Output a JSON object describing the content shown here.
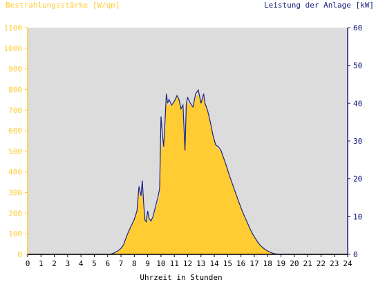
{
  "chart_data": {
    "type": "area",
    "left_axis_title": "Bestrahlungsstärke [W/qm]",
    "right_axis_title": "Leistung der Anlage [kW]",
    "xlabel": "Uhrzeit in Stunden",
    "xlim": [
      0,
      24
    ],
    "x_ticks": [
      "0",
      "1",
      "2",
      "3",
      "4",
      "5",
      "6",
      "7",
      "8",
      "9",
      "10",
      "11",
      "12",
      "13",
      "14",
      "15",
      "16",
      "17",
      "18",
      "19",
      "20",
      "21",
      "22",
      "23",
      "24"
    ],
    "y_left_lim": [
      0,
      1100
    ],
    "y_left_ticks": [
      "0",
      "100",
      "200",
      "300",
      "400",
      "500",
      "600",
      "700",
      "800",
      "900",
      "1000",
      "1100"
    ],
    "y_right_lim": [
      0,
      60
    ],
    "y_right_ticks": [
      "0",
      "10",
      "20",
      "30",
      "40",
      "50",
      "60"
    ],
    "grid": false,
    "colors": {
      "irradiance_fill": "#ffcc33",
      "power_line": "#1a237e",
      "plot_bg": "#dcdcdc",
      "left_axis_text": "#ffcc33",
      "right_axis_text": "#1a237e"
    },
    "series": [
      {
        "axis": "left",
        "style": "area",
        "x": [
          0,
          6.2,
          6.5,
          6.8,
          7.0,
          7.2,
          7.4,
          7.6,
          7.8,
          8.0,
          8.2,
          8.35,
          8.5,
          8.6,
          8.7,
          8.8,
          8.9,
          9.0,
          9.1,
          9.25,
          9.4,
          9.6,
          9.8,
          9.9,
          10.0,
          10.1,
          10.2,
          10.3,
          10.4,
          10.5,
          10.6,
          10.8,
          11.0,
          11.2,
          11.35,
          11.5,
          11.65,
          11.8,
          11.9,
          12.0,
          12.2,
          12.4,
          12.6,
          12.8,
          13.0,
          13.2,
          13.3,
          13.5,
          13.7,
          13.9,
          14.1,
          14.3,
          14.5,
          14.7,
          14.9,
          15.1,
          15.3,
          15.5,
          15.7,
          15.9,
          16.1,
          16.3,
          16.5,
          16.7,
          16.9,
          17.1,
          17.3,
          17.5,
          17.7,
          17.9,
          18.1,
          18.3,
          18.5,
          18.7,
          18.9,
          19.1,
          24
        ],
        "values": [
          0,
          0,
          5,
          15,
          25,
          45,
          80,
          110,
          140,
          170,
          220,
          305,
          275,
          300,
          240,
          160,
          150,
          200,
          170,
          155,
          175,
          220,
          260,
          290,
          520,
          560,
          500,
          590,
          750,
          720,
          730,
          720,
          740,
          780,
          750,
          710,
          720,
          500,
          720,
          740,
          725,
          715,
          760,
          780,
          730,
          760,
          740,
          700,
          650,
          580,
          530,
          510,
          500,
          470,
          430,
          390,
          350,
          315,
          280,
          245,
          210,
          180,
          150,
          120,
          95,
          75,
          55,
          40,
          30,
          20,
          12,
          7,
          3,
          1,
          0,
          0,
          0
        ]
      },
      {
        "axis": "right",
        "style": "line",
        "x": [
          0,
          6.2,
          6.5,
          6.8,
          7.0,
          7.2,
          7.4,
          7.6,
          7.8,
          8.0,
          8.2,
          8.35,
          8.5,
          8.6,
          8.7,
          8.8,
          8.9,
          9.0,
          9.1,
          9.25,
          9.4,
          9.6,
          9.8,
          9.9,
          10.0,
          10.1,
          10.2,
          10.3,
          10.4,
          10.5,
          10.6,
          10.8,
          11.0,
          11.2,
          11.35,
          11.5,
          11.65,
          11.8,
          11.9,
          12.0,
          12.2,
          12.4,
          12.6,
          12.8,
          13.0,
          13.2,
          13.3,
          13.5,
          13.7,
          13.9,
          14.1,
          14.3,
          14.5,
          14.7,
          14.9,
          15.1,
          15.3,
          15.5,
          15.7,
          15.9,
          16.1,
          16.3,
          16.5,
          16.7,
          16.9,
          17.1,
          17.3,
          17.5,
          17.7,
          17.9,
          18.1,
          18.3,
          18.5,
          18.7,
          18.9,
          19.1,
          24
        ],
        "values": [
          0,
          0,
          0.4,
          1.0,
          1.6,
          2.6,
          4.6,
          6.3,
          7.8,
          9.3,
          11.5,
          18.0,
          15.5,
          19.5,
          13.5,
          9.0,
          8.6,
          11.5,
          9.6,
          8.8,
          10.0,
          12.8,
          15.6,
          17.5,
          36.5,
          32.0,
          28.5,
          35.0,
          42.5,
          40.0,
          41.0,
          39.5,
          40.5,
          42.0,
          41.0,
          38.5,
          39.5,
          27.5,
          40.0,
          41.5,
          40.0,
          39.0,
          42.5,
          43.5,
          40.0,
          42.5,
          40.0,
          38.0,
          35.0,
          31.5,
          29.0,
          28.5,
          27.5,
          25.5,
          23.5,
          21.2,
          19.2,
          17.2,
          15.2,
          13.3,
          11.4,
          9.8,
          8.2,
          6.6,
          5.2,
          4.1,
          3.0,
          2.2,
          1.6,
          1.1,
          0.7,
          0.4,
          0.2,
          0.05,
          0,
          0,
          0
        ]
      }
    ]
  }
}
